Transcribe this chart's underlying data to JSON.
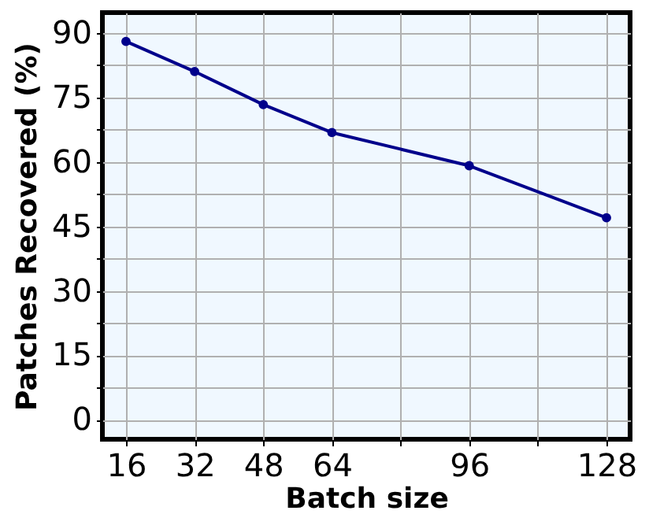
{
  "chart_data": {
    "type": "line",
    "xlabel": "Batch size",
    "ylabel": "Patches Recovered (%)",
    "x": [
      16,
      32,
      48,
      64,
      96,
      128
    ],
    "series": [
      {
        "color": "#00008b",
        "values": [
          88.0,
          81.0,
          73.3,
          66.8,
          59.1,
          47.0
        ]
      }
    ],
    "xlim": [
      10.5,
      133.5
    ],
    "ylim": [
      -4.5,
      94.7
    ],
    "xticks": [
      16,
      32,
      48,
      64,
      {
        "value": 80,
        "label": null
      },
      96,
      {
        "value": 112,
        "label": null
      },
      128
    ],
    "yticks": [
      0,
      {
        "value": 7.5,
        "label": null
      },
      15,
      {
        "value": 22.5,
        "label": null
      },
      30,
      {
        "value": 37.5,
        "label": null
      },
      45,
      {
        "value": 52.5,
        "label": null
      },
      60,
      {
        "value": 67.5,
        "label": null
      },
      75,
      {
        "value": 82.5,
        "label": null
      },
      90
    ],
    "grid": true,
    "marker": "circle",
    "line_style": "solid"
  }
}
